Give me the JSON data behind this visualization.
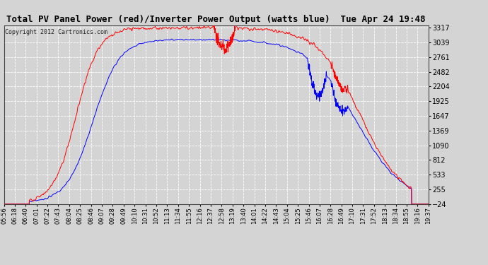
{
  "title": "Total PV Panel Power (red)/Inverter Power Output (watts blue)  Tue Apr 24 19:48",
  "copyright": "Copyright 2012 Cartronics.com",
  "ymin": -23.5,
  "ymax": 3317.4,
  "yticks": [
    3317.4,
    3039.0,
    2760.6,
    2482.2,
    2203.8,
    1925.4,
    1647.0,
    1368.6,
    1090.1,
    811.7,
    533.3,
    254.9,
    -23.5
  ],
  "xtick_labels": [
    "05:56",
    "06:18",
    "06:40",
    "07:01",
    "07:22",
    "07:43",
    "08:04",
    "08:25",
    "08:46",
    "09:07",
    "09:28",
    "09:49",
    "10:10",
    "10:31",
    "10:52",
    "11:13",
    "11:34",
    "11:55",
    "12:16",
    "12:37",
    "12:58",
    "13:19",
    "13:40",
    "14:01",
    "14:22",
    "14:43",
    "15:04",
    "15:25",
    "15:46",
    "16:07",
    "16:28",
    "16:49",
    "17:10",
    "17:31",
    "17:52",
    "18:13",
    "18:34",
    "18:55",
    "19:16",
    "19:37"
  ],
  "bg_color": "#d4d4d4",
  "plot_bg_color": "#d4d4d4",
  "grid_color": "#ffffff",
  "line_red": "#ff0000",
  "line_blue": "#0000ff",
  "peak_red": 3317.4,
  "peak_blue": 3100.0,
  "noise_red": 40,
  "noise_blue": 25
}
